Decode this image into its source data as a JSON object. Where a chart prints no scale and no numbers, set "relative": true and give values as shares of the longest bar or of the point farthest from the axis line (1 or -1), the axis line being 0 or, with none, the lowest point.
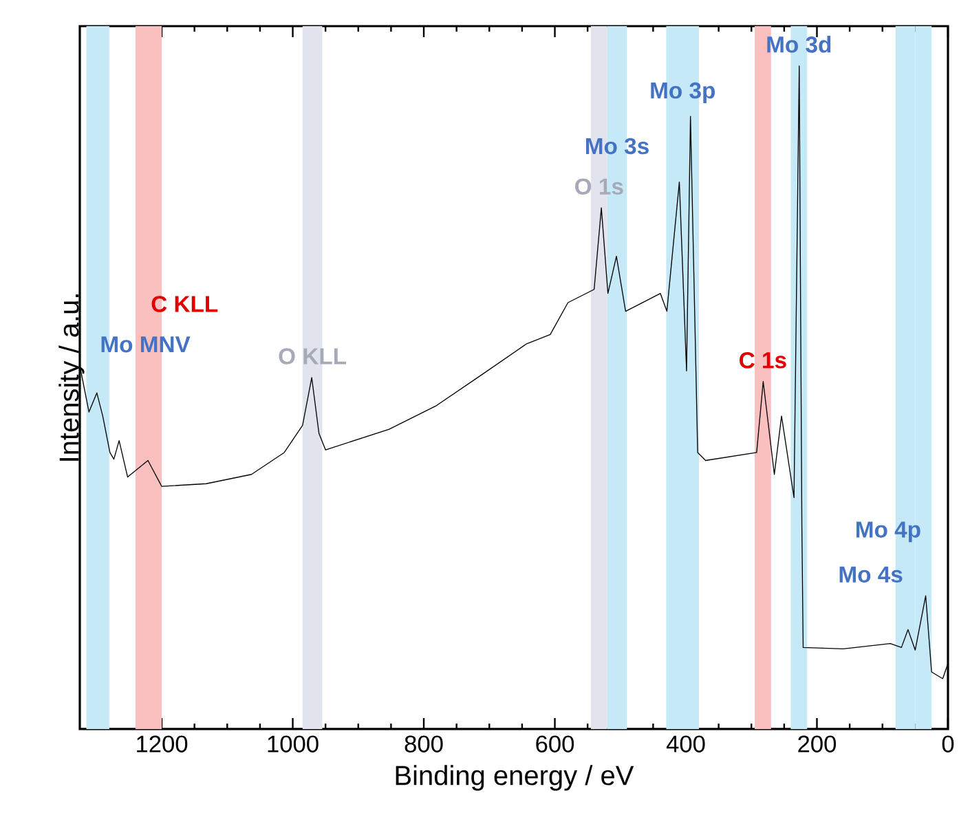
{
  "chart_data": {
    "type": "line",
    "relative": true,
    "xlabel": "Binding energy / eV",
    "ylabel": "Intensity / a.u.",
    "xlim": [
      1325,
      0
    ],
    "xticks": [
      1200,
      1000,
      800,
      600,
      400,
      200,
      0
    ],
    "tick_labels": "x",
    "grid": false,
    "marker": "none",
    "line_style": "solid",
    "x": [
      1325,
      1311,
      1299,
      1290,
      1279,
      1273,
      1265,
      1252,
      1221,
      1200,
      1132,
      1063,
      1013,
      985,
      971,
      960,
      950,
      853,
      782,
      712,
      643,
      607,
      580,
      540,
      529,
      519,
      506,
      492,
      439,
      429,
      410,
      399,
      393,
      382,
      370,
      292,
      282,
      265,
      254,
      235,
      227,
      223,
      221,
      160,
      88,
      71,
      61,
      50,
      34,
      25,
      8,
      0
    ],
    "series": [
      {
        "color": "#000000",
        "values": [
          0.548,
          0.478,
          0.507,
          0.472,
          0.417,
          0.407,
          0.435,
          0.38,
          0.405,
          0.366,
          0.37,
          0.384,
          0.417,
          0.458,
          0.53,
          0.446,
          0.421,
          0.452,
          0.487,
          0.534,
          0.581,
          0.595,
          0.643,
          0.663,
          0.786,
          0.657,
          0.713,
          0.63,
          0.657,
          0.63,
          0.825,
          0.54,
          0.924,
          0.417,
          0.405,
          0.417,
          0.524,
          0.384,
          0.472,
          0.349,
          1.0,
          0.308,
          0.123,
          0.121,
          0.129,
          0.123,
          0.15,
          0.119,
          0.201,
          0.086,
          0.076,
          0.099
        ]
      }
    ],
    "bands": [
      {
        "axis": "x",
        "from": 1315,
        "to": 1280,
        "color": "#c5e9f7",
        "label": "Mo MNV"
      },
      {
        "axis": "x",
        "from": 1240,
        "to": 1200,
        "color": "#fac0c0",
        "label": "C KLL"
      },
      {
        "axis": "x",
        "from": 985,
        "to": 955,
        "color": "#e1e4ec",
        "label": "O KLL"
      },
      {
        "axis": "x",
        "from": 545,
        "to": 520,
        "color": "#e1e4ec",
        "label": "O 1s"
      },
      {
        "axis": "x",
        "from": 520,
        "to": 490,
        "color": "#c5e9f7",
        "label": "Mo 3s"
      },
      {
        "axis": "x",
        "from": 430,
        "to": 380,
        "color": "#c5e9f7",
        "label": "Mo 3p"
      },
      {
        "axis": "x",
        "from": 295,
        "to": 270,
        "color": "#fac0c0",
        "label": "C 1s"
      },
      {
        "axis": "x",
        "from": 240,
        "to": 215,
        "color": "#c5e9f7",
        "label": "Mo 3d"
      },
      {
        "axis": "x",
        "from": 80,
        "to": 50,
        "color": "#c5e9f7",
        "label": "Mo 4s"
      },
      {
        "axis": "x",
        "from": 50,
        "to": 25,
        "color": "#c5e9f7",
        "label": "Mo 4p"
      }
    ]
  }
}
